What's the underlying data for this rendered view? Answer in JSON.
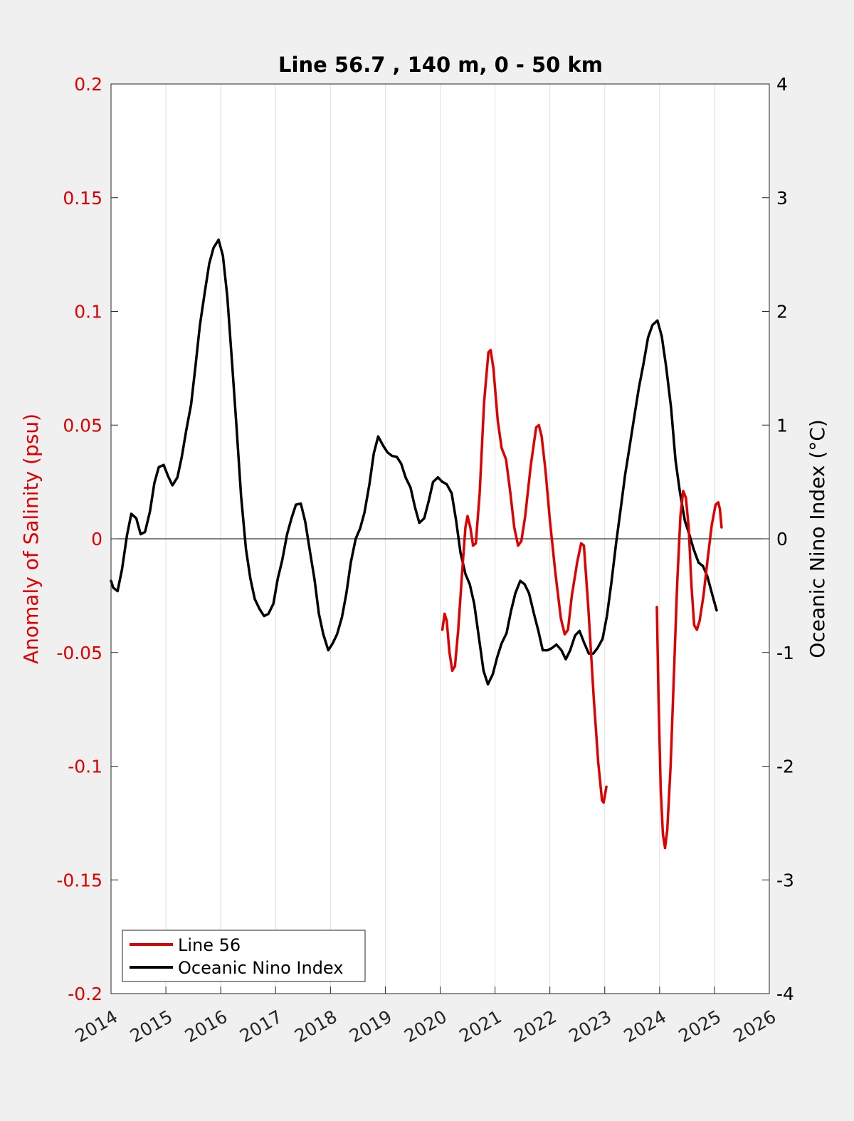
{
  "chart_data": {
    "type": "line",
    "title": "Line 56.7 , 140 m, 0 - 50 km",
    "xlabel": "",
    "ylabel_left": "Anomaly of Salinity (psu)",
    "ylabel_right": "Oceanic Nino Index (°C)",
    "xlim": [
      2014,
      2026
    ],
    "ylim_left": [
      -0.2,
      0.2
    ],
    "ylim_right": [
      -4,
      4
    ],
    "x_ticks": [
      "2014",
      "2015",
      "2016",
      "2017",
      "2018",
      "2019",
      "2020",
      "2021",
      "2022",
      "2023",
      "2024",
      "2025",
      "2026"
    ],
    "y_ticks_left": [
      "0.2",
      "0.15",
      "0.1",
      "0.05",
      "0",
      "-0.05",
      "-0.1",
      "-0.15",
      "-0.2"
    ],
    "y_ticks_right": [
      "4",
      "3",
      "2",
      "1",
      "0",
      "-1",
      "-2",
      "-3",
      "-4"
    ],
    "grid": "vertical",
    "legend_position": "bottom-left",
    "colors": {
      "salinity": "#e00000",
      "oni": "#000000",
      "left_axis": "#e00000",
      "right_axis": "#000000"
    },
    "series": [
      {
        "name": "Line 56",
        "axis": "left",
        "segments": [
          [
            [
              2020.04,
              -0.04
            ],
            [
              2020.08,
              -0.033
            ],
            [
              2020.12,
              -0.036
            ],
            [
              2020.17,
              -0.05
            ],
            [
              2020.22,
              -0.058
            ],
            [
              2020.27,
              -0.056
            ],
            [
              2020.33,
              -0.04
            ],
            [
              2020.4,
              -0.015
            ],
            [
              2020.46,
              0.005
            ],
            [
              2020.5,
              0.01
            ],
            [
              2020.55,
              0.005
            ],
            [
              2020.6,
              -0.003
            ],
            [
              2020.65,
              -0.002
            ],
            [
              2020.72,
              0.02
            ],
            [
              2020.8,
              0.06
            ],
            [
              2020.88,
              0.082
            ],
            [
              2020.92,
              0.083
            ],
            [
              2020.97,
              0.075
            ],
            [
              2021.05,
              0.052
            ],
            [
              2021.12,
              0.04
            ],
            [
              2021.2,
              0.035
            ],
            [
              2021.28,
              0.02
            ],
            [
              2021.35,
              0.005
            ],
            [
              2021.42,
              -0.003
            ],
            [
              2021.48,
              -0.001
            ],
            [
              2021.55,
              0.01
            ],
            [
              2021.65,
              0.032
            ],
            [
              2021.75,
              0.049
            ],
            [
              2021.8,
              0.05
            ],
            [
              2021.85,
              0.045
            ],
            [
              2021.92,
              0.03
            ],
            [
              2022.0,
              0.008
            ],
            [
              2022.1,
              -0.015
            ],
            [
              2022.2,
              -0.035
            ],
            [
              2022.27,
              -0.042
            ],
            [
              2022.33,
              -0.04
            ],
            [
              2022.4,
              -0.025
            ],
            [
              2022.5,
              -0.01
            ],
            [
              2022.57,
              -0.002
            ],
            [
              2022.62,
              -0.003
            ],
            [
              2022.7,
              -0.03
            ],
            [
              2022.8,
              -0.07
            ],
            [
              2022.88,
              -0.098
            ],
            [
              2022.95,
              -0.115
            ],
            [
              2022.98,
              -0.116
            ],
            [
              2023.03,
              -0.109
            ]
          ],
          [
            [
              2023.95,
              -0.03
            ],
            [
              2023.98,
              -0.07
            ],
            [
              2024.02,
              -0.11
            ],
            [
              2024.06,
              -0.13
            ],
            [
              2024.1,
              -0.136
            ],
            [
              2024.14,
              -0.128
            ],
            [
              2024.2,
              -0.1
            ],
            [
              2024.26,
              -0.06
            ],
            [
              2024.32,
              -0.02
            ],
            [
              2024.38,
              0.01
            ],
            [
              2024.43,
              0.021
            ],
            [
              2024.48,
              0.018
            ],
            [
              2024.53,
              0.005
            ],
            [
              2024.58,
              -0.02
            ],
            [
              2024.63,
              -0.038
            ],
            [
              2024.68,
              -0.04
            ],
            [
              2024.73,
              -0.036
            ],
            [
              2024.8,
              -0.025
            ],
            [
              2024.88,
              -0.008
            ],
            [
              2024.95,
              0.006
            ],
            [
              2025.02,
              0.015
            ],
            [
              2025.07,
              0.016
            ],
            [
              2025.1,
              0.013
            ],
            [
              2025.13,
              0.005
            ]
          ]
        ]
      },
      {
        "name": "Oceanic Nino Index",
        "axis": "right",
        "points": [
          [
            2014.0,
            -0.37
          ],
          [
            2014.04,
            -0.43
          ],
          [
            2014.12,
            -0.46
          ],
          [
            2014.2,
            -0.27
          ],
          [
            2014.29,
            0.03
          ],
          [
            2014.37,
            0.22
          ],
          [
            2014.46,
            0.18
          ],
          [
            2014.54,
            0.04
          ],
          [
            2014.62,
            0.06
          ],
          [
            2014.71,
            0.24
          ],
          [
            2014.79,
            0.49
          ],
          [
            2014.87,
            0.63
          ],
          [
            2014.96,
            0.65
          ],
          [
            2015.04,
            0.55
          ],
          [
            2015.12,
            0.47
          ],
          [
            2015.21,
            0.54
          ],
          [
            2015.29,
            0.72
          ],
          [
            2015.37,
            0.95
          ],
          [
            2015.46,
            1.18
          ],
          [
            2015.54,
            1.52
          ],
          [
            2015.62,
            1.88
          ],
          [
            2015.71,
            2.17
          ],
          [
            2015.79,
            2.42
          ],
          [
            2015.87,
            2.56
          ],
          [
            2015.96,
            2.63
          ],
          [
            2016.04,
            2.49
          ],
          [
            2016.12,
            2.13
          ],
          [
            2016.21,
            1.52
          ],
          [
            2016.29,
            0.97
          ],
          [
            2016.37,
            0.38
          ],
          [
            2016.46,
            -0.09
          ],
          [
            2016.54,
            -0.35
          ],
          [
            2016.62,
            -0.53
          ],
          [
            2016.71,
            -0.62
          ],
          [
            2016.79,
            -0.68
          ],
          [
            2016.87,
            -0.66
          ],
          [
            2016.96,
            -0.57
          ],
          [
            2017.04,
            -0.35
          ],
          [
            2017.12,
            -0.19
          ],
          [
            2017.21,
            0.04
          ],
          [
            2017.29,
            0.18
          ],
          [
            2017.37,
            0.3
          ],
          [
            2017.46,
            0.31
          ],
          [
            2017.54,
            0.15
          ],
          [
            2017.62,
            -0.09
          ],
          [
            2017.71,
            -0.36
          ],
          [
            2017.79,
            -0.66
          ],
          [
            2017.87,
            -0.84
          ],
          [
            2017.96,
            -0.98
          ],
          [
            2018.04,
            -0.92
          ],
          [
            2018.12,
            -0.84
          ],
          [
            2018.21,
            -0.69
          ],
          [
            2018.29,
            -0.48
          ],
          [
            2018.37,
            -0.21
          ],
          [
            2018.46,
            0.0
          ],
          [
            2018.54,
            0.09
          ],
          [
            2018.62,
            0.23
          ],
          [
            2018.71,
            0.48
          ],
          [
            2018.79,
            0.75
          ],
          [
            2018.87,
            0.9
          ],
          [
            2018.96,
            0.82
          ],
          [
            2019.04,
            0.76
          ],
          [
            2019.12,
            0.73
          ],
          [
            2019.21,
            0.72
          ],
          [
            2019.29,
            0.66
          ],
          [
            2019.37,
            0.54
          ],
          [
            2019.46,
            0.45
          ],
          [
            2019.54,
            0.28
          ],
          [
            2019.62,
            0.14
          ],
          [
            2019.71,
            0.18
          ],
          [
            2019.79,
            0.33
          ],
          [
            2019.87,
            0.5
          ],
          [
            2019.96,
            0.54
          ],
          [
            2020.04,
            0.5
          ],
          [
            2020.12,
            0.48
          ],
          [
            2020.21,
            0.4
          ],
          [
            2020.29,
            0.16
          ],
          [
            2020.37,
            -0.12
          ],
          [
            2020.46,
            -0.31
          ],
          [
            2020.54,
            -0.4
          ],
          [
            2020.62,
            -0.57
          ],
          [
            2020.71,
            -0.88
          ],
          [
            2020.79,
            -1.16
          ],
          [
            2020.87,
            -1.28
          ],
          [
            2020.96,
            -1.19
          ],
          [
            2021.04,
            -1.04
          ],
          [
            2021.12,
            -0.92
          ],
          [
            2021.21,
            -0.83
          ],
          [
            2021.29,
            -0.64
          ],
          [
            2021.37,
            -0.48
          ],
          [
            2021.46,
            -0.37
          ],
          [
            2021.54,
            -0.4
          ],
          [
            2021.62,
            -0.48
          ],
          [
            2021.71,
            -0.66
          ],
          [
            2021.79,
            -0.81
          ],
          [
            2021.87,
            -0.98
          ],
          [
            2021.96,
            -0.98
          ],
          [
            2022.04,
            -0.96
          ],
          [
            2022.12,
            -0.93
          ],
          [
            2022.21,
            -0.98
          ],
          [
            2022.29,
            -1.06
          ],
          [
            2022.37,
            -0.98
          ],
          [
            2022.46,
            -0.85
          ],
          [
            2022.54,
            -0.81
          ],
          [
            2022.62,
            -0.91
          ],
          [
            2022.71,
            -1.01
          ],
          [
            2022.79,
            -1.01
          ],
          [
            2022.87,
            -0.96
          ],
          [
            2022.96,
            -0.88
          ],
          [
            2023.04,
            -0.68
          ],
          [
            2023.12,
            -0.39
          ],
          [
            2023.21,
            -0.03
          ],
          [
            2023.29,
            0.26
          ],
          [
            2023.37,
            0.56
          ],
          [
            2023.46,
            0.83
          ],
          [
            2023.54,
            1.08
          ],
          [
            2023.62,
            1.32
          ],
          [
            2023.71,
            1.55
          ],
          [
            2023.79,
            1.77
          ],
          [
            2023.87,
            1.88
          ],
          [
            2023.96,
            1.92
          ],
          [
            2024.04,
            1.78
          ],
          [
            2024.12,
            1.51
          ],
          [
            2024.21,
            1.15
          ],
          [
            2024.29,
            0.69
          ],
          [
            2024.37,
            0.41
          ],
          [
            2024.46,
            0.16
          ],
          [
            2024.54,
            0.04
          ],
          [
            2024.62,
            -0.09
          ],
          [
            2024.71,
            -0.21
          ],
          [
            2024.79,
            -0.24
          ],
          [
            2024.87,
            -0.33
          ],
          [
            2024.96,
            -0.49
          ],
          [
            2025.04,
            -0.63
          ]
        ]
      }
    ]
  }
}
